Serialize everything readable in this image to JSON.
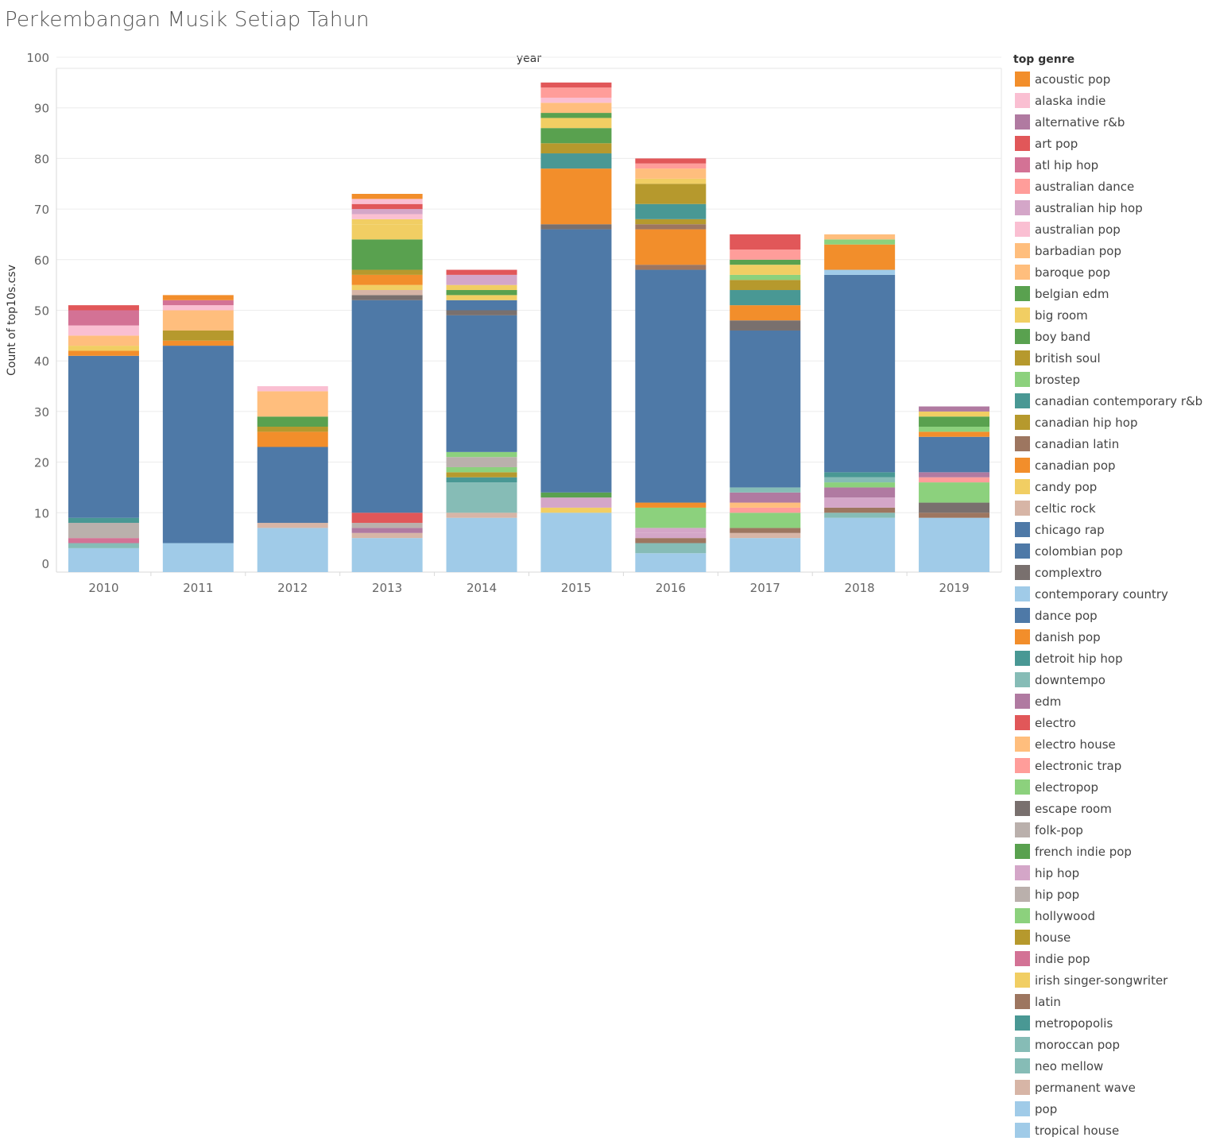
{
  "header": {
    "title": "Perkembangan Musik Setiap Tahun"
  },
  "chart_data": {
    "type": "bar",
    "stacked": true,
    "title": "Perkembangan Musik Setiap Tahun",
    "column_header": "year",
    "ylabel": "Count of top10s.csv",
    "ylim": [
      0,
      100
    ],
    "yticks": [
      0,
      10,
      20,
      30,
      40,
      50,
      60,
      70,
      80,
      90,
      100
    ],
    "grid": true,
    "legend_position": "right",
    "legend_title": "top genre",
    "categories": [
      "2010",
      "2011",
      "2012",
      "2013",
      "2014",
      "2015",
      "2016",
      "2017",
      "2018",
      "2019"
    ],
    "genres": [
      {
        "name": "acoustic pop",
        "color": "#f28e2b"
      },
      {
        "name": "alaska indie",
        "color": "#fabfd2"
      },
      {
        "name": "alternative r&b",
        "color": "#b07aa1"
      },
      {
        "name": "art pop",
        "color": "#e15759"
      },
      {
        "name": "atl hip hop",
        "color": "#d37295"
      },
      {
        "name": "australian dance",
        "color": "#ff9d9a"
      },
      {
        "name": "australian hip hop",
        "color": "#d4a6c8"
      },
      {
        "name": "australian pop",
        "color": "#fabfd2"
      },
      {
        "name": "barbadian pop",
        "color": "#ffbe7d"
      },
      {
        "name": "baroque pop",
        "color": "#ffbe7d"
      },
      {
        "name": "belgian edm",
        "color": "#59a14f"
      },
      {
        "name": "big room",
        "color": "#f1ce63"
      },
      {
        "name": "boy band",
        "color": "#59a14f"
      },
      {
        "name": "british soul",
        "color": "#b6992d"
      },
      {
        "name": "brostep",
        "color": "#8cd17d"
      },
      {
        "name": "canadian contemporary r&b",
        "color": "#499894"
      },
      {
        "name": "canadian hip hop",
        "color": "#b6992d"
      },
      {
        "name": "canadian latin",
        "color": "#9d7660"
      },
      {
        "name": "canadian pop",
        "color": "#f28e2b"
      },
      {
        "name": "candy pop",
        "color": "#f1ce63"
      },
      {
        "name": "celtic rock",
        "color": "#d7b5a6"
      },
      {
        "name": "chicago rap",
        "color": "#4e79a7"
      },
      {
        "name": "colombian pop",
        "color": "#4e79a7"
      },
      {
        "name": "complextro",
        "color": "#79706e"
      },
      {
        "name": "contemporary country",
        "color": "#a0cbe8"
      },
      {
        "name": "dance pop",
        "color": "#4e79a7"
      },
      {
        "name": "danish pop",
        "color": "#f28e2b"
      },
      {
        "name": "detroit hip hop",
        "color": "#499894"
      },
      {
        "name": "downtempo",
        "color": "#86bcb6"
      },
      {
        "name": "edm",
        "color": "#b07aa1"
      },
      {
        "name": "electro",
        "color": "#e15759"
      },
      {
        "name": "electro house",
        "color": "#ffbe7d"
      },
      {
        "name": "electronic trap",
        "color": "#ff9d9a"
      },
      {
        "name": "electropop",
        "color": "#8cd17d"
      },
      {
        "name": "escape room",
        "color": "#79706e"
      },
      {
        "name": "folk-pop",
        "color": "#bab0ac"
      },
      {
        "name": "french indie pop",
        "color": "#59a14f"
      },
      {
        "name": "hip hop",
        "color": "#d4a6c8"
      },
      {
        "name": "hip pop",
        "color": "#bab0ac"
      },
      {
        "name": "hollywood",
        "color": "#8cd17d"
      },
      {
        "name": "house",
        "color": "#b6992d"
      },
      {
        "name": "indie pop",
        "color": "#d37295"
      },
      {
        "name": "irish singer-songwriter",
        "color": "#f1ce63"
      },
      {
        "name": "latin",
        "color": "#9d7660"
      },
      {
        "name": "metropopolis",
        "color": "#499894"
      },
      {
        "name": "moroccan pop",
        "color": "#86bcb6"
      },
      {
        "name": "neo mellow",
        "color": "#86bcb6"
      },
      {
        "name": "permanent wave",
        "color": "#d7b5a6"
      },
      {
        "name": "pop",
        "color": "#a0cbe8"
      },
      {
        "name": "tropical house",
        "color": "#a0cbe8"
      }
    ],
    "stacks": {
      "2010": [
        {
          "genre": "pop",
          "value": 3
        },
        {
          "genre": "neo mellow",
          "value": 1
        },
        {
          "genre": "indie pop",
          "value": 1
        },
        {
          "genre": "hip pop",
          "value": 3
        },
        {
          "genre": "detroit hip hop",
          "value": 1
        },
        {
          "genre": "dance pop",
          "value": 32
        },
        {
          "genre": "danish pop",
          "value": 1
        },
        {
          "genre": "candy pop",
          "value": 1
        },
        {
          "genre": "barbadian pop",
          "value": 2
        },
        {
          "genre": "australian pop",
          "value": 2
        },
        {
          "genre": "atl hip hop",
          "value": 3
        },
        {
          "genre": "art pop",
          "value": 1
        }
      ],
      "2011": [
        {
          "genre": "pop",
          "value": 4
        },
        {
          "genre": "dance pop",
          "value": 39
        },
        {
          "genre": "canadian pop",
          "value": 1
        },
        {
          "genre": "canadian hip hop",
          "value": 2
        },
        {
          "genre": "baroque pop",
          "value": 4
        },
        {
          "genre": "alaska indie",
          "value": 1
        },
        {
          "genre": "atl hip hop",
          "value": 1
        },
        {
          "genre": "acoustic pop",
          "value": 1
        }
      ],
      "2012": [
        {
          "genre": "pop",
          "value": 7
        },
        {
          "genre": "permanent wave",
          "value": 1
        },
        {
          "genre": "dance pop",
          "value": 15
        },
        {
          "genre": "canadian pop",
          "value": 3
        },
        {
          "genre": "canadian hip hop",
          "value": 1
        },
        {
          "genre": "boy band",
          "value": 2
        },
        {
          "genre": "barbadian pop",
          "value": 5
        },
        {
          "genre": "australian pop",
          "value": 1
        }
      ],
      "2013": [
        {
          "genre": "pop",
          "value": 5
        },
        {
          "genre": "permanent wave",
          "value": 1
        },
        {
          "genre": "edm",
          "value": 1
        },
        {
          "genre": "folk-pop",
          "value": 1
        },
        {
          "genre": "electro",
          "value": 2
        },
        {
          "genre": "dance pop",
          "value": 42
        },
        {
          "genre": "complextro",
          "value": 1
        },
        {
          "genre": "celtic rock",
          "value": 1
        },
        {
          "genre": "big room",
          "value": 1
        },
        {
          "genre": "canadian pop",
          "value": 2
        },
        {
          "genre": "canadian hip hop",
          "value": 1
        },
        {
          "genre": "boy band",
          "value": 6
        },
        {
          "genre": "big room",
          "value": 3
        },
        {
          "genre": "candy pop",
          "value": 1
        },
        {
          "genre": "alaska indie",
          "value": 1
        },
        {
          "genre": "australian hip hop",
          "value": 1
        },
        {
          "genre": "art pop",
          "value": 1
        },
        {
          "genre": "australian pop",
          "value": 1
        },
        {
          "genre": "acoustic pop",
          "value": 1
        }
      ],
      "2014": [
        {
          "genre": "pop",
          "value": 9
        },
        {
          "genre": "permanent wave",
          "value": 1
        },
        {
          "genre": "neo mellow",
          "value": 6
        },
        {
          "genre": "detroit hip hop",
          "value": 1
        },
        {
          "genre": "canadian hip hop",
          "value": 1
        },
        {
          "genre": "brostep",
          "value": 1
        },
        {
          "genre": "folk-pop",
          "value": 2
        },
        {
          "genre": "electropop",
          "value": 1
        },
        {
          "genre": "dance pop",
          "value": 27
        },
        {
          "genre": "complextro",
          "value": 1
        },
        {
          "genre": "colombian pop",
          "value": 2
        },
        {
          "genre": "candy pop",
          "value": 1
        },
        {
          "genre": "boy band",
          "value": 1
        },
        {
          "genre": "big room",
          "value": 1
        },
        {
          "genre": "hip hop",
          "value": 2
        },
        {
          "genre": "electro",
          "value": 1
        }
      ],
      "2015": [
        {
          "genre": "pop",
          "value": 10
        },
        {
          "genre": "irish singer-songwriter",
          "value": 1
        },
        {
          "genre": "hip hop",
          "value": 2
        },
        {
          "genre": "boy band",
          "value": 1
        },
        {
          "genre": "dance pop",
          "value": 52
        },
        {
          "genre": "complextro",
          "value": 1
        },
        {
          "genre": "danish pop",
          "value": 11
        },
        {
          "genre": "detroit hip hop",
          "value": 3
        },
        {
          "genre": "british soul",
          "value": 2
        },
        {
          "genre": "boy band",
          "value": 3
        },
        {
          "genre": "big room",
          "value": 2
        },
        {
          "genre": "belgian edm",
          "value": 1
        },
        {
          "genre": "barbadian pop",
          "value": 2
        },
        {
          "genre": "alaska indie",
          "value": 1
        },
        {
          "genre": "australian dance",
          "value": 2
        },
        {
          "genre": "electro",
          "value": 1
        }
      ],
      "2016": [
        {
          "genre": "tropical house",
          "value": 2
        },
        {
          "genre": "moroccan pop",
          "value": 2
        },
        {
          "genre": "latin",
          "value": 1
        },
        {
          "genre": "hip hop",
          "value": 1
        },
        {
          "genre": "australian hip hop",
          "value": 1
        },
        {
          "genre": "electropop",
          "value": 4
        },
        {
          "genre": "danish pop",
          "value": 1
        },
        {
          "genre": "dance pop",
          "value": 46
        },
        {
          "genre": "canadian latin",
          "value": 1
        },
        {
          "genre": "canadian pop",
          "value": 7
        },
        {
          "genre": "canadian latin",
          "value": 1
        },
        {
          "genre": "british soul",
          "value": 1
        },
        {
          "genre": "canadian contemporary r&b",
          "value": 3
        },
        {
          "genre": "canadian hip hop",
          "value": 4
        },
        {
          "genre": "candy pop",
          "value": 1
        },
        {
          "genre": "electro house",
          "value": 2
        },
        {
          "genre": "electronic trap",
          "value": 1
        },
        {
          "genre": "electro",
          "value": 1
        }
      ],
      "2017": [
        {
          "genre": "tropical house",
          "value": 5
        },
        {
          "genre": "permanent wave",
          "value": 1
        },
        {
          "genre": "latin",
          "value": 1
        },
        {
          "genre": "hollywood",
          "value": 3
        },
        {
          "genre": "electronic trap",
          "value": 1
        },
        {
          "genre": "electro house",
          "value": 1
        },
        {
          "genre": "edm",
          "value": 2
        },
        {
          "genre": "downtempo",
          "value": 1
        },
        {
          "genre": "dance pop",
          "value": 31
        },
        {
          "genre": "complextro",
          "value": 2
        },
        {
          "genre": "canadian pop",
          "value": 3
        },
        {
          "genre": "canadian contemporary r&b",
          "value": 3
        },
        {
          "genre": "canadian hip hop",
          "value": 2
        },
        {
          "genre": "brostep",
          "value": 1
        },
        {
          "genre": "candy pop",
          "value": 2
        },
        {
          "genre": "boy band",
          "value": 1
        },
        {
          "genre": "australian dance",
          "value": 2
        },
        {
          "genre": "electro",
          "value": 3
        }
      ],
      "2018": [
        {
          "genre": "pop",
          "value": 9
        },
        {
          "genre": "downtempo",
          "value": 1
        },
        {
          "genre": "latin",
          "value": 1
        },
        {
          "genre": "hip hop",
          "value": 2
        },
        {
          "genre": "edm",
          "value": 2
        },
        {
          "genre": "electropop",
          "value": 1
        },
        {
          "genre": "moroccan pop",
          "value": 1
        },
        {
          "genre": "canadian contemporary r&b",
          "value": 1
        },
        {
          "genre": "dance pop",
          "value": 39
        },
        {
          "genre": "contemporary country",
          "value": 1
        },
        {
          "genre": "canadian pop",
          "value": 5
        },
        {
          "genre": "brostep",
          "value": 1
        },
        {
          "genre": "electro house",
          "value": 1
        }
      ],
      "2019": [
        {
          "genre": "pop",
          "value": 9
        },
        {
          "genre": "latin",
          "value": 1
        },
        {
          "genre": "complextro",
          "value": 2
        },
        {
          "genre": "electropop",
          "value": 4
        },
        {
          "genre": "electronic trap",
          "value": 1
        },
        {
          "genre": "edm",
          "value": 1
        },
        {
          "genre": "dance pop",
          "value": 7
        },
        {
          "genre": "canadian pop",
          "value": 1
        },
        {
          "genre": "brostep",
          "value": 1
        },
        {
          "genre": "boy band",
          "value": 2
        },
        {
          "genre": "big room",
          "value": 1
        },
        {
          "genre": "edm",
          "value": 1
        }
      ]
    }
  }
}
